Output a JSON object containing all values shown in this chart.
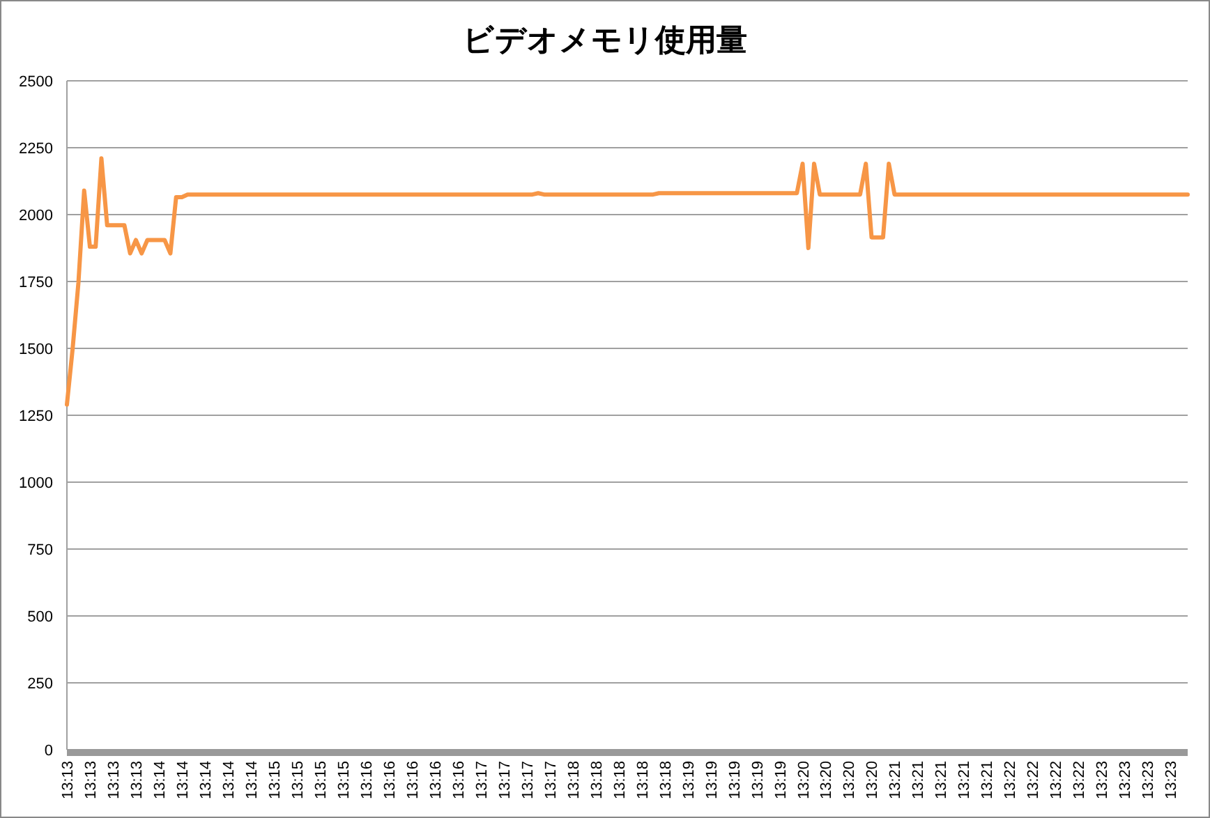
{
  "chart_data": {
    "type": "line",
    "title": "ビデオメモリ使用量",
    "categories": [
      "13:13",
      null,
      null,
      null,
      "13:13",
      null,
      null,
      null,
      "13:13",
      null,
      null,
      null,
      "13:13",
      null,
      null,
      null,
      "13:14",
      null,
      null,
      null,
      "13:14",
      null,
      null,
      null,
      "13:14",
      null,
      null,
      null,
      "13:14",
      null,
      null,
      null,
      "13:14",
      null,
      null,
      null,
      "13:15",
      null,
      null,
      null,
      "13:15",
      null,
      null,
      null,
      "13:15",
      null,
      null,
      null,
      "13:15",
      null,
      null,
      null,
      "13:16",
      null,
      null,
      null,
      "13:16",
      null,
      null,
      null,
      "13:16",
      null,
      null,
      null,
      "13:16",
      null,
      null,
      null,
      "13:16",
      null,
      null,
      null,
      "13:17",
      null,
      null,
      null,
      "13:17",
      null,
      null,
      null,
      "13:17",
      null,
      null,
      null,
      "13:17",
      null,
      null,
      null,
      "13:18",
      null,
      null,
      null,
      "13:18",
      null,
      null,
      null,
      "13:18",
      null,
      null,
      null,
      "13:18",
      null,
      null,
      null,
      "13:18",
      null,
      null,
      null,
      "13:19",
      null,
      null,
      null,
      "13:19",
      null,
      null,
      null,
      "13:19",
      null,
      null,
      null,
      "13:19",
      null,
      null,
      null,
      "13:19",
      null,
      null,
      null,
      "13:20",
      null,
      null,
      null,
      "13:20",
      null,
      null,
      null,
      "13:20",
      null,
      null,
      null,
      "13:20",
      null,
      null,
      null,
      "13:21",
      null,
      null,
      null,
      "13:21",
      null,
      null,
      null,
      "13:21",
      null,
      null,
      null,
      "13:21",
      null,
      null,
      null,
      "13:21",
      null,
      null,
      null,
      "13:22",
      null,
      null,
      null,
      "13:22",
      null,
      null,
      null,
      "13:22",
      null,
      null,
      null,
      "13:22",
      null,
      null,
      null,
      "13:23",
      null,
      null,
      null,
      "13:23",
      null,
      null,
      null,
      "13:23",
      null,
      null,
      null,
      "13:23",
      null,
      null,
      null
    ],
    "series": [
      {
        "color": "#f79646",
        "values": [
          1290,
          1500,
          1745,
          2090,
          1880,
          1880,
          2210,
          1960,
          1960,
          1960,
          1960,
          1855,
          1905,
          1855,
          1905,
          1905,
          1905,
          1905,
          1855,
          2065,
          2065,
          2075,
          2075,
          2075,
          2075,
          2075,
          2075,
          2075,
          2075,
          2075,
          2075,
          2075,
          2075,
          2075,
          2075,
          2075,
          2075,
          2075,
          2075,
          2075,
          2075,
          2075,
          2075,
          2075,
          2075,
          2075,
          2075,
          2075,
          2075,
          2075,
          2075,
          2075,
          2075,
          2075,
          2075,
          2075,
          2075,
          2075,
          2075,
          2075,
          2075,
          2075,
          2075,
          2075,
          2075,
          2075,
          2075,
          2075,
          2075,
          2075,
          2075,
          2075,
          2075,
          2075,
          2075,
          2075,
          2075,
          2075,
          2075,
          2075,
          2075,
          2075,
          2080,
          2075,
          2075,
          2075,
          2075,
          2075,
          2075,
          2075,
          2075,
          2075,
          2075,
          2075,
          2075,
          2075,
          2075,
          2075,
          2075,
          2075,
          2075,
          2075,
          2075,
          2080,
          2080,
          2080,
          2080,
          2080,
          2080,
          2080,
          2080,
          2080,
          2080,
          2080,
          2080,
          2080,
          2080,
          2080,
          2080,
          2080,
          2080,
          2080,
          2080,
          2080,
          2080,
          2080,
          2080,
          2080,
          2190,
          1875,
          2190,
          2075,
          2075,
          2075,
          2075,
          2075,
          2075,
          2075,
          2075,
          2190,
          1915,
          1915,
          1915,
          2190,
          2075,
          2075,
          2075,
          2075,
          2075,
          2075,
          2075,
          2075,
          2075,
          2075,
          2075,
          2075,
          2075,
          2075,
          2075,
          2075,
          2075,
          2075,
          2075,
          2075,
          2075,
          2075,
          2075,
          2075,
          2075,
          2075,
          2075,
          2075,
          2075,
          2075,
          2075,
          2075,
          2075,
          2075,
          2075,
          2075,
          2075,
          2075,
          2075,
          2075,
          2075,
          2075,
          2075,
          2075,
          2075,
          2075,
          2075,
          2075,
          2075,
          2075,
          2075,
          2075
        ]
      }
    ],
    "ylim": [
      0,
      2500
    ],
    "yticks": [
      0,
      250,
      500,
      750,
      1000,
      1250,
      1500,
      1750,
      2000,
      2250,
      2500
    ],
    "grid": "y"
  }
}
